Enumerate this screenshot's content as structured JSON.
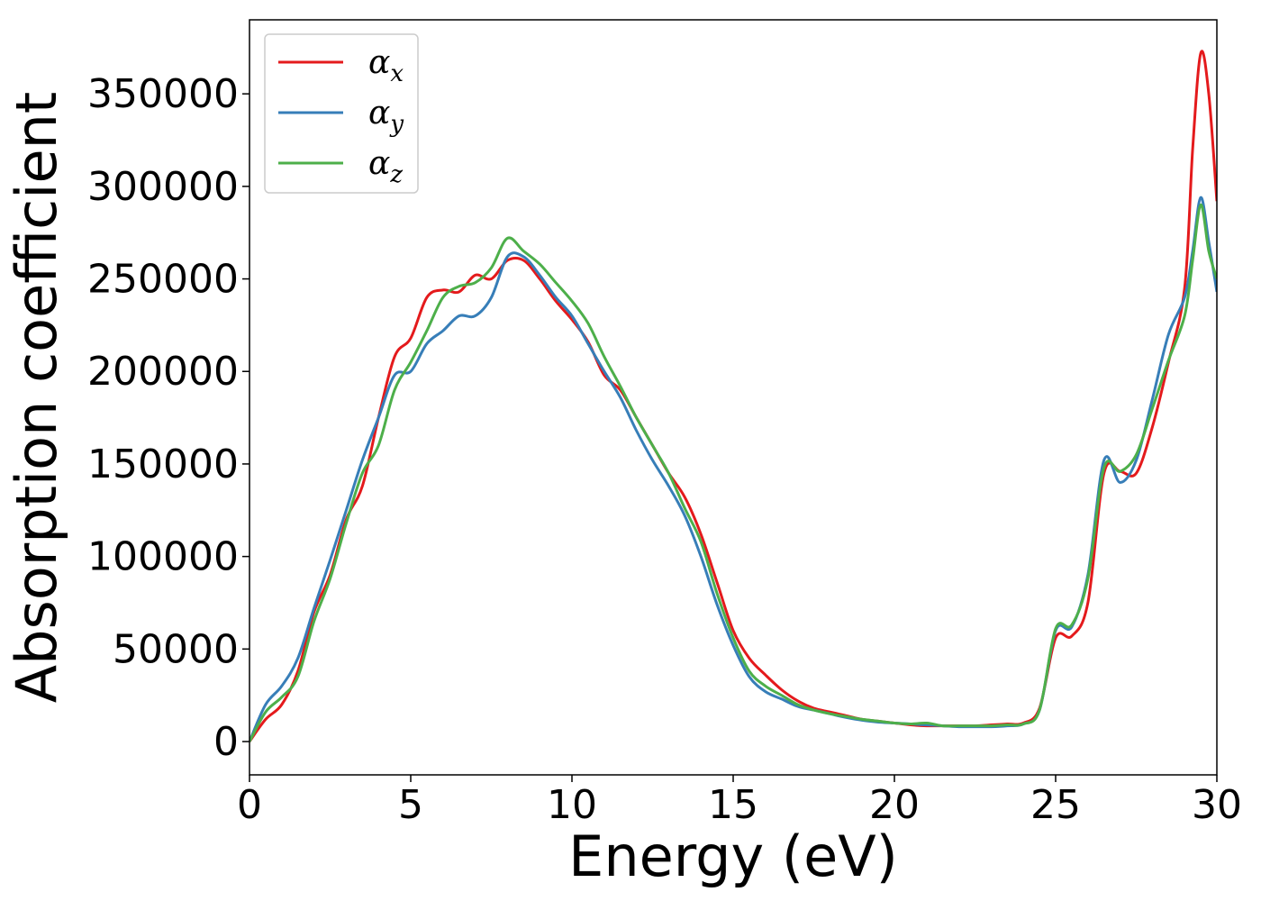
{
  "chart_data": {
    "type": "line",
    "title": "",
    "xlabel": "Energy (eV)",
    "ylabel": "Absorption coefficient",
    "xlim": [
      0,
      30
    ],
    "ylim": [
      -18000,
      390000
    ],
    "xticks": [
      0,
      5,
      10,
      15,
      20,
      25,
      30
    ],
    "yticks": [
      0,
      50000,
      100000,
      150000,
      200000,
      250000,
      300000,
      350000
    ],
    "grid": false,
    "legend": {
      "placement": "upper-left"
    },
    "x": [
      0,
      0.5,
      1,
      1.5,
      2,
      2.5,
      3,
      3.5,
      4,
      4.5,
      5,
      5.5,
      6,
      6.5,
      7,
      7.5,
      8,
      8.5,
      9,
      9.5,
      10,
      10.5,
      11,
      11.5,
      12,
      12.5,
      13,
      13.5,
      14,
      14.5,
      15,
      15.5,
      16,
      16.5,
      17,
      17.5,
      18,
      18.5,
      19,
      19.5,
      20,
      20.5,
      21,
      21.5,
      22,
      22.5,
      23,
      23.5,
      24,
      24.5,
      25,
      25.5,
      26,
      26.5,
      27,
      27.5,
      28,
      28.5,
      29,
      29.25,
      29.5,
      29.75,
      30
    ],
    "series": [
      {
        "name": "αx",
        "base": "α",
        "sub": "x",
        "color": "#e41a1c",
        "values": [
          0,
          12000,
          20000,
          38000,
          70000,
          90000,
          120000,
          138000,
          175000,
          208000,
          218000,
          240000,
          244000,
          243000,
          252000,
          250000,
          260000,
          260000,
          250000,
          238000,
          228000,
          216000,
          198000,
          190000,
          175000,
          160000,
          145000,
          132000,
          112000,
          86000,
          60000,
          45000,
          36000,
          28000,
          22000,
          18000,
          16000,
          14000,
          12000,
          11000,
          10000,
          9000,
          8500,
          8500,
          8500,
          8500,
          9000,
          9500,
          10000,
          18000,
          56000,
          57000,
          75000,
          145000,
          146000,
          145000,
          170000,
          205000,
          245000,
          320000,
          372000,
          350000,
          292000
        ]
      },
      {
        "name": "αy",
        "base": "α",
        "sub": "y",
        "color": "#377eb8",
        "values": [
          0,
          20000,
          30000,
          45000,
          72000,
          98000,
          125000,
          152000,
          175000,
          198000,
          200000,
          215000,
          222000,
          230000,
          230000,
          240000,
          262000,
          262000,
          252000,
          240000,
          230000,
          215000,
          200000,
          186000,
          168000,
          152000,
          138000,
          122000,
          100000,
          74000,
          52000,
          35000,
          27000,
          23000,
          19000,
          17000,
          15000,
          13000,
          11500,
          10500,
          10000,
          9500,
          9000,
          8500,
          8000,
          8000,
          8000,
          8500,
          9500,
          17000,
          60000,
          62000,
          90000,
          152000,
          140000,
          152000,
          185000,
          220000,
          240000,
          265000,
          294000,
          270000,
          243000
        ]
      },
      {
        "name": "αz",
        "base": "α",
        "sub": "z",
        "color": "#4daf4a",
        "values": [
          0,
          16000,
          24000,
          35000,
          65000,
          88000,
          118000,
          145000,
          160000,
          190000,
          205000,
          222000,
          240000,
          246000,
          248000,
          256000,
          272000,
          265000,
          258000,
          248000,
          238000,
          226000,
          208000,
          192000,
          175000,
          160000,
          145000,
          126000,
          108000,
          80000,
          56000,
          38000,
          30000,
          25000,
          20000,
          17000,
          15000,
          13500,
          12000,
          11000,
          10000,
          9500,
          10000,
          8500,
          8500,
          8500,
          8500,
          9000,
          9500,
          17000,
          61000,
          63000,
          88000,
          148000,
          146000,
          155000,
          180000,
          206000,
          230000,
          260000,
          290000,
          265000,
          250000
        ]
      }
    ]
  }
}
